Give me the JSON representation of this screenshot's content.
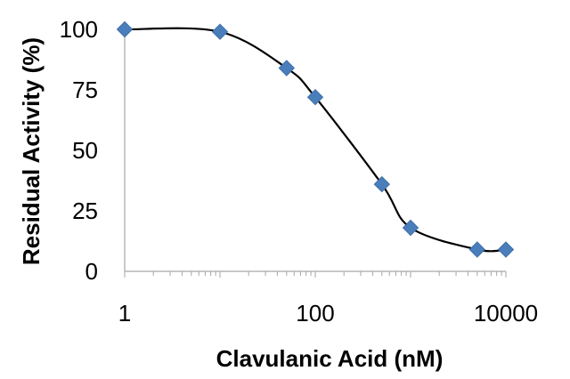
{
  "colors": {
    "marker": "#4a7ebb",
    "marker_stroke": "#3f6fa8",
    "curve": "#000000",
    "axis": "#a6a6a6"
  },
  "chart_data": {
    "type": "scatter",
    "title": "",
    "xlabel": "Clavulanic Acid (nM)",
    "ylabel": "Residual Activity (%)",
    "x_scale": "log",
    "xlim": [
      1,
      10000
    ],
    "ylim": [
      0,
      100
    ],
    "x_tick_labels": [
      "1",
      "100",
      "10000"
    ],
    "y_tick_labels": [
      "0",
      "25",
      "50",
      "75",
      "100"
    ],
    "grid": false,
    "legend": "none",
    "marker": "diamond",
    "trendline": "smooth sigmoid through points",
    "series": [
      {
        "x": [
          1,
          10,
          50,
          100,
          500,
          1000,
          5000,
          10000
        ],
        "y": [
          100,
          99,
          84,
          72,
          36,
          18,
          9,
          9
        ]
      }
    ]
  }
}
